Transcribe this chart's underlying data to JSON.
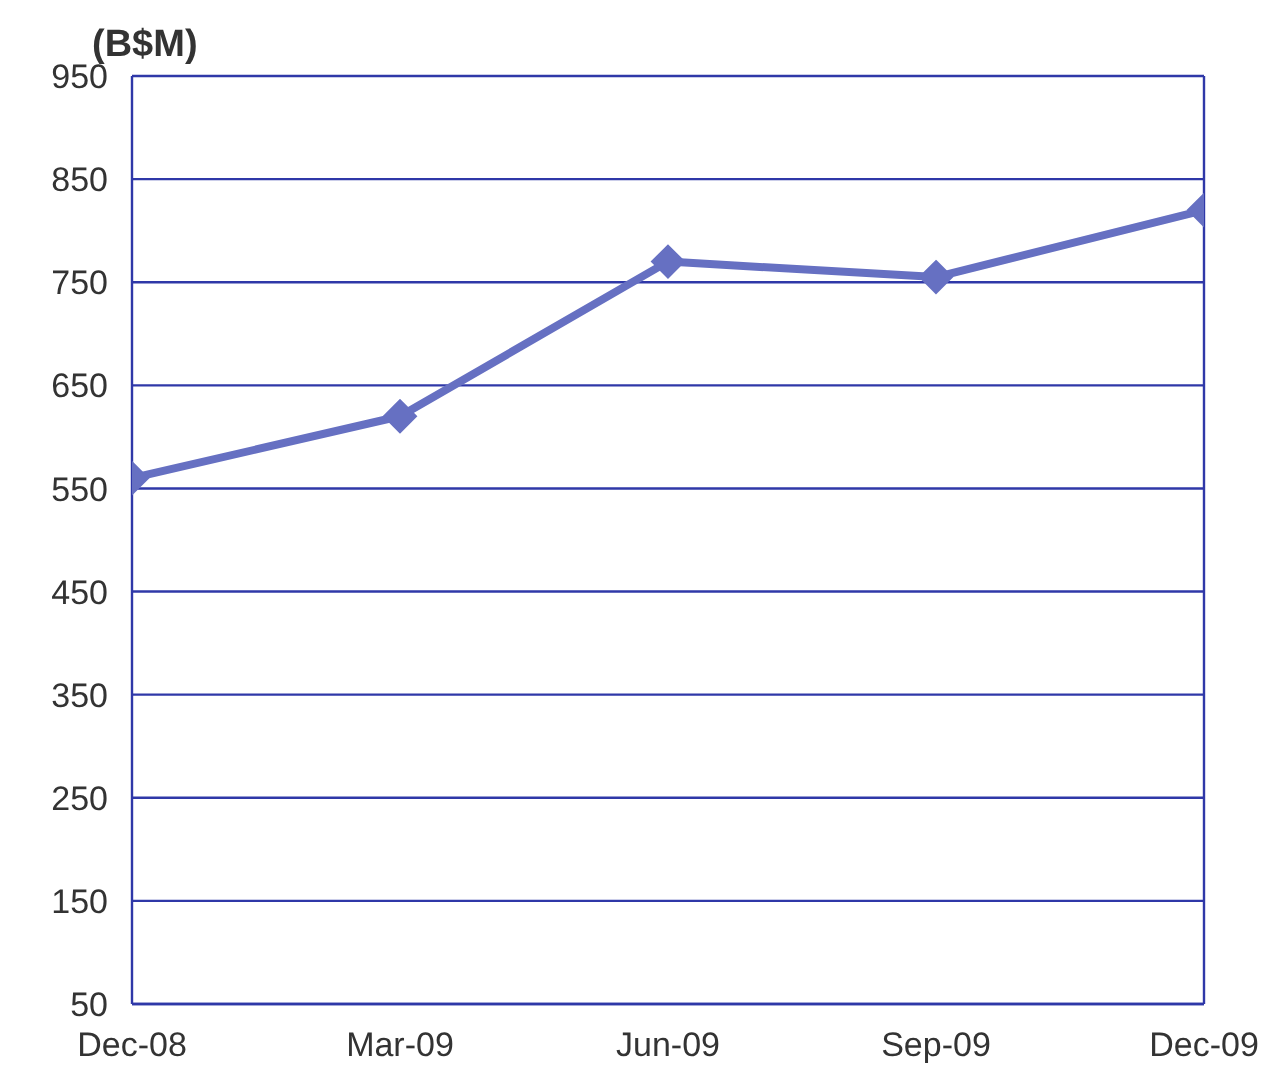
{
  "chart_data": {
    "type": "line",
    "ylabel": "(B$M)",
    "categories": [
      "Dec-08",
      "Mar-09",
      "Jun-09",
      "Sep-09",
      "Dec-09"
    ],
    "series": [
      {
        "color": "#6670c2",
        "values": [
          560,
          620,
          770,
          755,
          820
        ]
      }
    ],
    "ylim": [
      50,
      950
    ],
    "yticks": [
      50,
      150,
      250,
      350,
      450,
      550,
      650,
      750,
      850,
      950
    ],
    "grid": "y",
    "marker": "diamond",
    "line_style": "solid"
  }
}
